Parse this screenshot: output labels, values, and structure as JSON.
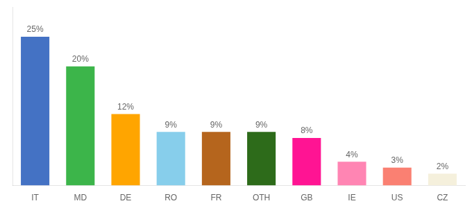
{
  "chart_data": {
    "type": "bar",
    "categories": [
      "IT",
      "MD",
      "DE",
      "RO",
      "FR",
      "OTH",
      "GB",
      "IE",
      "US",
      "CZ"
    ],
    "values": [
      25,
      20,
      12,
      9,
      9,
      9,
      8,
      4,
      3,
      2
    ],
    "value_labels": [
      "25%",
      "20%",
      "12%",
      "9%",
      "9%",
      "9%",
      "8%",
      "4%",
      "3%",
      "2%"
    ],
    "data_labels": true,
    "colors": [
      "#4472C4",
      "#3CB54A",
      "#FFA500",
      "#87CEEB",
      "#B5651D",
      "#2D6B1A",
      "#FF1493",
      "#FF85B3",
      "#FA8072",
      "#F5F0DC"
    ],
    "ylim": [
      0,
      30
    ],
    "grid": false,
    "tick_labels": "x"
  }
}
